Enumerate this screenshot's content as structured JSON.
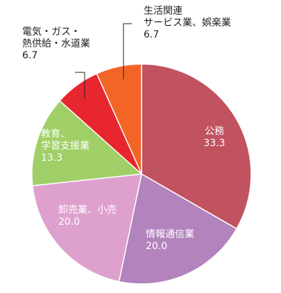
{
  "chart_data": {
    "type": "pie",
    "title": "",
    "unit": "",
    "slices": [
      {
        "label_lines": [
          "公務"
        ],
        "value": 33.3,
        "value_text": "33.3",
        "color": "#c1525f"
      },
      {
        "label_lines": [
          "情報通信業"
        ],
        "value": 20.0,
        "value_text": "20.0",
        "color": "#b283bd"
      },
      {
        "label_lines": [
          "卸売業、小売"
        ],
        "value": 20.0,
        "value_text": "20.0",
        "color": "#dea1cd"
      },
      {
        "label_lines": [
          "教育、",
          "学習支援業"
        ],
        "value": 13.3,
        "value_text": "13.3",
        "color": "#a0cf67"
      },
      {
        "label_lines": [
          "電気・ガス・",
          "熱供給・水道業"
        ],
        "value": 6.7,
        "value_text": "6.7",
        "color": "#e8262e"
      },
      {
        "label_lines": [
          "生活関連",
          "サービス業、娯楽業"
        ],
        "value": 6.7,
        "value_text": "6.7",
        "color": "#f36526"
      }
    ]
  }
}
